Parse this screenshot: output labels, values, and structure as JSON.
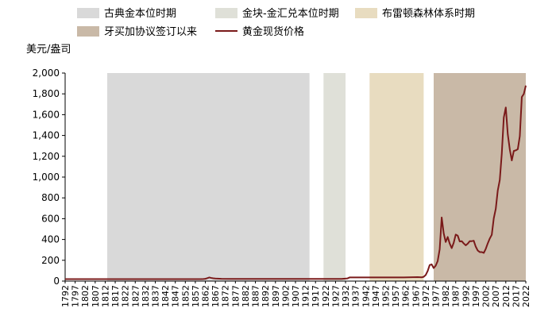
{
  "chart_data": {
    "type": "line",
    "ylabel": "美元/盎司",
    "ylim": [
      0,
      2000
    ],
    "xlim": [
      1792,
      2022
    ],
    "y_ticks": [
      "0",
      "200",
      "400",
      "600",
      "800",
      "1,000",
      "1,200",
      "1,400",
      "1,600",
      "1,800",
      "2,000"
    ],
    "x_ticks": [
      "1792",
      "1797",
      "1802",
      "1807",
      "1812",
      "1817",
      "1822",
      "1827",
      "1832",
      "1837",
      "1842",
      "1847",
      "1852",
      "1857",
      "1862",
      "1867",
      "1872",
      "1877",
      "1882",
      "1887",
      "1892",
      "1897",
      "1902",
      "1907",
      "1912",
      "1917",
      "1922",
      "1927",
      "1932",
      "1937",
      "1942",
      "1947",
      "1952",
      "1957",
      "1962",
      "1967",
      "1972",
      "1977",
      "1982",
      "1987",
      "1992",
      "1997",
      "2002",
      "2007",
      "2012",
      "2017",
      "2022"
    ],
    "grid": false,
    "legend_position": "top",
    "periods": [
      {
        "name": "古典金本位时期",
        "start": 1813,
        "end": 1914,
        "color": "#d9d9d9"
      },
      {
        "name": "金块-金汇兑本位时期",
        "start": 1921,
        "end": 1932,
        "color": "#dfe0d8"
      },
      {
        "name": "布雷顿森林体系时期",
        "start": 1944,
        "end": 1971,
        "color": "#e8dcc0"
      },
      {
        "name": "牙买加协议签订以来",
        "start": 1976,
        "end": 2022,
        "color": "#c9b9a7"
      }
    ],
    "series": [
      {
        "name": "黄金现货价格",
        "color": "#7a1a1a",
        "x": [
          1792,
          1800,
          1810,
          1820,
          1830,
          1840,
          1850,
          1860,
          1861,
          1862,
          1863,
          1864,
          1865,
          1866,
          1867,
          1870,
          1875,
          1880,
          1890,
          1900,
          1910,
          1920,
          1930,
          1933,
          1934,
          1940,
          1945,
          1950,
          1960,
          1968,
          1970,
          1971,
          1972,
          1973,
          1974,
          1975,
          1976,
          1977,
          1978,
          1979,
          1980,
          1981,
          1982,
          1983,
          1984,
          1985,
          1986,
          1987,
          1988,
          1989,
          1990,
          1991,
          1992,
          1993,
          1994,
          1995,
          1996,
          1997,
          1998,
          1999,
          2000,
          2001,
          2002,
          2003,
          2004,
          2005,
          2006,
          2007,
          2008,
          2009,
          2010,
          2011,
          2012,
          2013,
          2014,
          2015,
          2016,
          2017,
          2018,
          2019,
          2020,
          2021,
          2022
        ],
        "y": [
          19,
          19,
          19,
          19,
          19,
          19,
          19,
          19,
          20,
          22,
          28,
          35,
          30,
          27,
          25,
          22,
          21,
          21,
          21,
          21,
          21,
          21,
          21,
          26,
          35,
          35,
          35,
          35,
          35,
          38,
          36,
          41,
          58,
          97,
          154,
          161,
          125,
          148,
          193,
          306,
          612,
          460,
          376,
          424,
          361,
          317,
          368,
          447,
          437,
          381,
          384,
          362,
          344,
          360,
          384,
          384,
          388,
          331,
          294,
          279,
          279,
          271,
          310,
          363,
          409,
          445,
          603,
          695,
          872,
          972,
          1225,
          1572,
          1669,
          1411,
          1266,
          1160,
          1251,
          1257,
          1268,
          1393,
          1770,
          1799,
          1880
        ]
      }
    ]
  }
}
